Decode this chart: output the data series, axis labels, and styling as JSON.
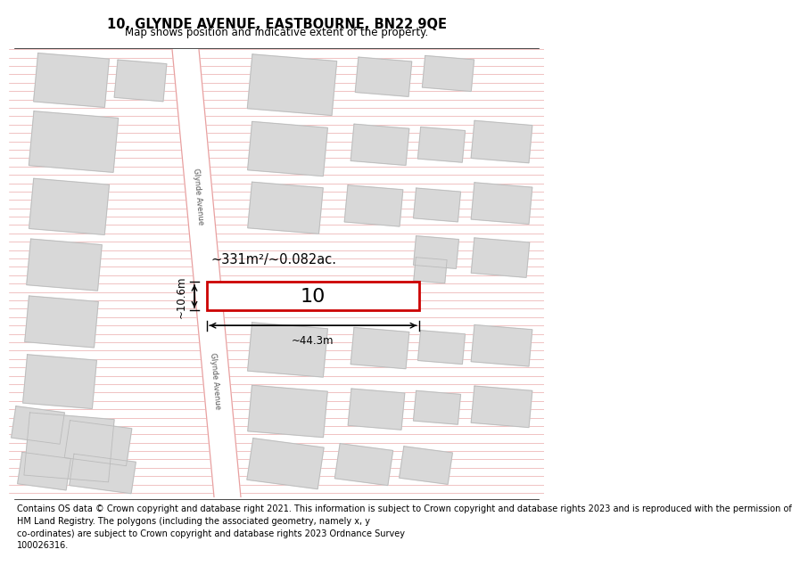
{
  "title": "10, GLYNDE AVENUE, EASTBOURNE, BN22 9QE",
  "subtitle": "Map shows position and indicative extent of the property.",
  "footer": "Contains OS data © Crown copyright and database right 2021. This information is subject to Crown copyright and database rights 2023 and is reproduced with the permission of\nHM Land Registry. The polygons (including the associated geometry, namely x, y\nco-ordinates) are subject to Crown copyright and database rights 2023 Ordnance Survey\n100026316.",
  "map_bg": "#ffffff",
  "building_fill": "#d8d8d8",
  "building_edge": "#bbbbbb",
  "cadastral_color": "#e8a0a0",
  "road_line_color": "#e8a0a0",
  "road_fill": "#ffffff",
  "property_rect_color": "#cc0000",
  "property_label": "10",
  "area_label": "~331m²/~0.082ac.",
  "dim_width": "~44.3m",
  "dim_height": "~10.6m",
  "title_fontsize": 10.5,
  "subtitle_fontsize": 8.5,
  "footer_fontsize": 7.0,
  "road_label": "Glynde Avenue"
}
